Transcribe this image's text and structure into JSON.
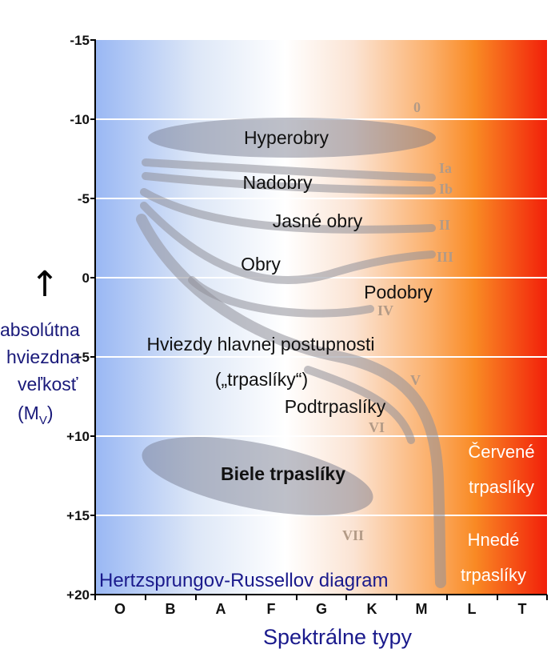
{
  "chart_data": {
    "type": "hr-diagram",
    "title": "Hertzsprungov-Russellov diagram",
    "xlabel": "Spektrálne typy",
    "ylabel_lines": [
      "absolútna",
      "hviezdna",
      "veľkosť"
    ],
    "ylabel_symbol": "(M",
    "ylabel_subscript": "V",
    "ylabel_close": ")",
    "ylabel_arrow": "↑",
    "x_categories": [
      "O",
      "B",
      "A",
      "F",
      "G",
      "K",
      "M",
      "L",
      "T"
    ],
    "y_ticks": [
      "-15",
      "-10",
      "-5",
      "0",
      "+5",
      "+10",
      "+15",
      "+20"
    ],
    "ylim": [
      -15,
      20
    ],
    "y_inverted": true,
    "background_gradient": [
      "#9ab8f4",
      "#dde7f7",
      "#ffffff",
      "#fbe4d4",
      "#fbb06c",
      "#f98a24",
      "#f2200a"
    ],
    "regions": {
      "hyperobry": "Hyperobry",
      "nadobry": "Nadobry",
      "jasne_obry": "Jasné obry",
      "obry": "Obry",
      "podobry": "Podobry",
      "hlavna_postupnost": "Hviezdy hlavnej postupnosti",
      "trpasliky": "(„trpaslíky“)",
      "podtrpasliky": "Podtrpaslíky",
      "biele_trpasliky": "Biele trpaslíky",
      "cervene_1": "Červené",
      "cervene_2": "trpaslíky",
      "hnede_1": "Hnedé",
      "hnede_2": "trpaslíky"
    },
    "luminosity_classes": [
      "0",
      "Ia",
      "Ib",
      "II",
      "III",
      "IV",
      "V",
      "VI",
      "VII"
    ]
  }
}
